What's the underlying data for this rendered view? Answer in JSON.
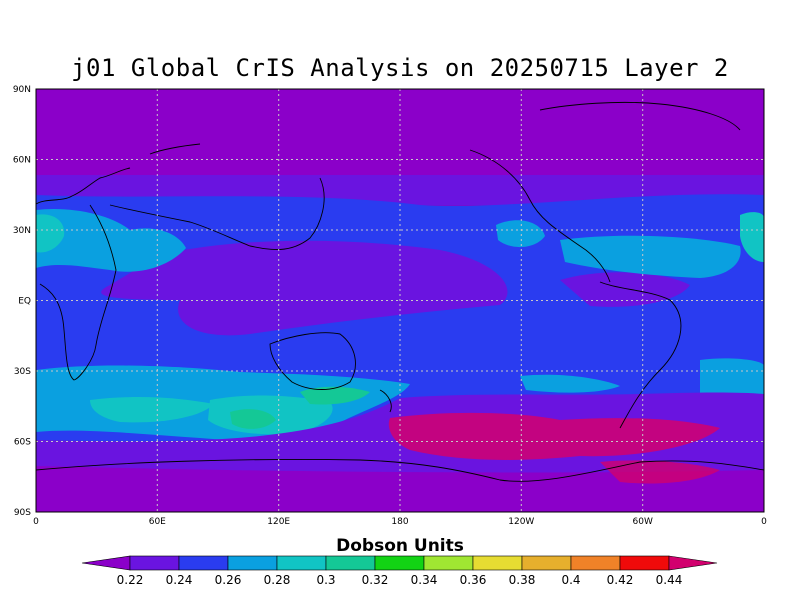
{
  "title": "j01 Global CrIS Analysis on 20250715 Layer 2",
  "lat_labels": [
    "90N",
    "60N",
    "30N",
    "EQ",
    "30S",
    "60S",
    "90S"
  ],
  "lon_labels": [
    "0",
    "60E",
    "120E",
    "180",
    "120W",
    "60W",
    "0"
  ],
  "colorbar": {
    "title": "Dobson Units",
    "labels": [
      "0.22",
      "0.24",
      "0.26",
      "0.28",
      "0.3",
      "0.32",
      "0.34",
      "0.36",
      "0.38",
      "0.4",
      "0.42",
      "0.44"
    ],
    "colors": [
      "#8b00c9",
      "#6a14e0",
      "#2a3cf0",
      "#0aa0e0",
      "#11c4c4",
      "#14c896",
      "#12d314",
      "#a0e632",
      "#e6dc32",
      "#e6af2d",
      "#f08228",
      "#f00a0a",
      "#d2006e"
    ]
  }
}
